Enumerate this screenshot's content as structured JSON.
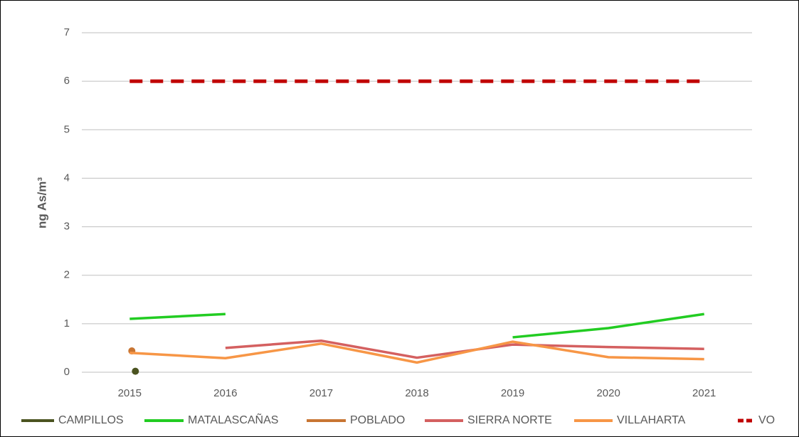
{
  "chart_data": {
    "type": "line",
    "y_label": "ng As/m³",
    "categories": [
      "2015",
      "2016",
      "2017",
      "2018",
      "2019",
      "2020",
      "2021"
    ],
    "ylim": [
      0,
      7
    ],
    "yticks": [
      0,
      1,
      2,
      3,
      4,
      5,
      6,
      7
    ],
    "grid": true,
    "legend": "bottom",
    "series": [
      {
        "name": "CAMPILLOS",
        "color": "#4b5320",
        "values": [
          0.02,
          null,
          null,
          null,
          null,
          null,
          null
        ]
      },
      {
        "name": "MATALASCAÑAS",
        "color": "#22cc22",
        "values": [
          1.1,
          1.2,
          null,
          null,
          0.72,
          0.91,
          1.2
        ]
      },
      {
        "name": "POBLADO",
        "color": "#c87533",
        "values": [
          0.44,
          null,
          null,
          null,
          null,
          null,
          null
        ]
      },
      {
        "name": "SIERRA NORTE",
        "color": "#d46060",
        "values": [
          null,
          0.5,
          0.65,
          0.3,
          0.57,
          0.52,
          0.48
        ]
      },
      {
        "name": "VILLAHARTA",
        "color": "#f79646",
        "values": [
          0.4,
          0.29,
          0.59,
          0.2,
          0.63,
          0.31,
          0.27
        ]
      },
      {
        "name": "VO",
        "color": "#c00000",
        "dashed": true,
        "values": [
          6,
          6,
          6,
          6,
          6,
          6,
          6
        ]
      }
    ]
  }
}
